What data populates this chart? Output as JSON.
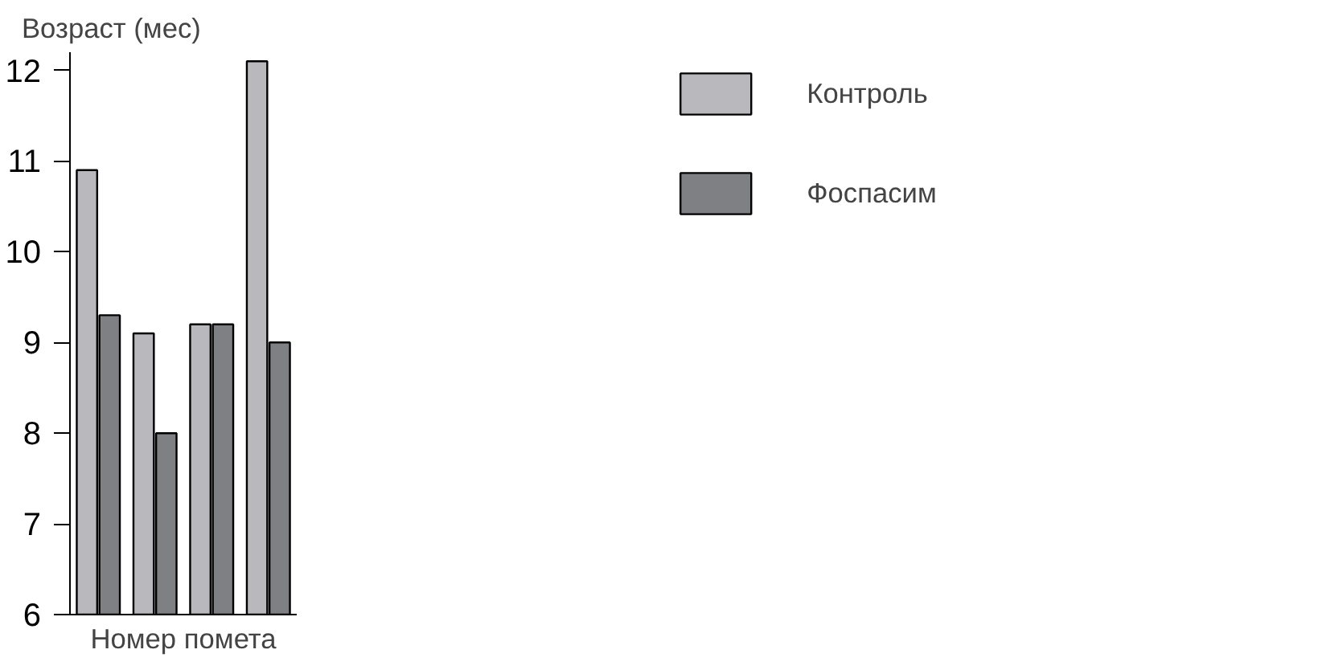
{
  "chart_data": {
    "type": "bar",
    "xlabel": "Номер помета",
    "ylabel": "Возраст (мес)",
    "categories": [
      null,
      null,
      null,
      null
    ],
    "series": [
      {
        "name": "Контроль",
        "color": "#b9b9bd",
        "values": [
          10.9,
          9.1,
          9.2,
          12.1
        ]
      },
      {
        "name": "Фоспасим",
        "color": "#7f8083",
        "values": [
          9.3,
          8.0,
          9.2,
          9.0
        ]
      }
    ],
    "ylim": [
      6,
      12.2
    ],
    "yticks": [
      6,
      7,
      8,
      9,
      10,
      11,
      12
    ],
    "grid": false,
    "legend": "right",
    "tick_labels": "y"
  }
}
